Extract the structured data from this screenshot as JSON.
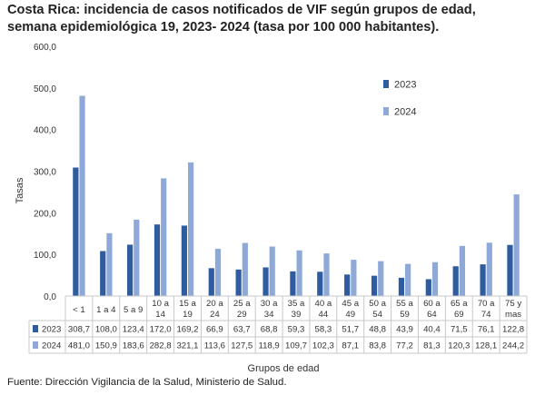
{
  "title": {
    "line1": "Costa Rica: incidencia de casos notificados de VIF según grupos de edad,",
    "line2": "semana epidemiológica 19, 2023- 2024 (tasa por 100 000 habitantes)."
  },
  "source": "Fuente: Dirección Vigilancia de la Salud, Ministerio de Salud.",
  "chart_data": {
    "type": "bar",
    "title": "",
    "xlabel": "Grupos de edad",
    "ylabel": "Tasas",
    "ylim": [
      0,
      600
    ],
    "yticks": [
      "0,0",
      "100,0",
      "200,0",
      "300,0",
      "400,0",
      "500,0",
      "600,0"
    ],
    "categories": [
      [
        "< 1"
      ],
      [
        "1 a 4"
      ],
      [
        "5 a 9"
      ],
      [
        "10 a",
        "14"
      ],
      [
        "15 a",
        "19"
      ],
      [
        "20 a",
        "24"
      ],
      [
        "25 a",
        "29"
      ],
      [
        "30 a",
        "34"
      ],
      [
        "35 a",
        "39"
      ],
      [
        "40 a",
        "44"
      ],
      [
        "45 a",
        "49"
      ],
      [
        "50 a",
        "54"
      ],
      [
        "55 a",
        "59"
      ],
      [
        "60 a",
        "64"
      ],
      [
        "65 a",
        "69"
      ],
      [
        "70 a",
        "74"
      ],
      [
        "75 y",
        "mas"
      ]
    ],
    "series": [
      {
        "name": "2023",
        "color": "#2e5c9e",
        "values": [
          308.7,
          108.0,
          123.4,
          172.0,
          169.2,
          66.9,
          63.7,
          68.8,
          59.3,
          58.3,
          51.7,
          48.8,
          43.9,
          40.4,
          71.5,
          76.1,
          122.8
        ],
        "labels": [
          "308,7",
          "108,0",
          "123,4",
          "172,0",
          "169,2",
          "66,9",
          "63,7",
          "68,8",
          "59,3",
          "58,3",
          "51,7",
          "48,8",
          "43,9",
          "40,4",
          "71,5",
          "76,1",
          "122,8"
        ]
      },
      {
        "name": "2024",
        "color": "#8ea9d8",
        "values": [
          481.0,
          150.9,
          183.6,
          282.8,
          321.1,
          113.6,
          127.5,
          118.9,
          109.7,
          102.3,
          87.1,
          83.8,
          77.2,
          81.3,
          120.3,
          128.1,
          244.2
        ],
        "labels": [
          "481,0",
          "150,9",
          "183,6",
          "282,8",
          "321,1",
          "113,6",
          "127,5",
          "118,9",
          "109,7",
          "102,3",
          "87,1",
          "83,8",
          "77,2",
          "81,3",
          "120,3",
          "128,1",
          "244,2"
        ]
      }
    ],
    "legend_position": "upper-right",
    "grid": false,
    "data_table": true
  }
}
